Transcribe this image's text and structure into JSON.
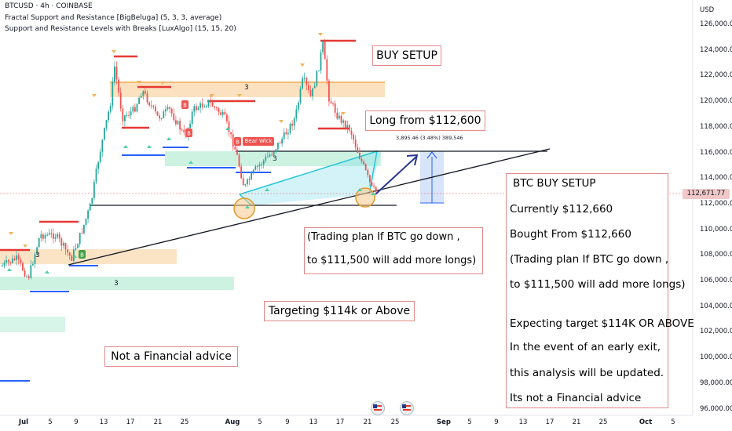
{
  "header": {
    "symbol_line": "BTCUSD · 4h · COINBASE",
    "indicator1": "Fractal Support and Resistance [BigBeluga] (5, 3, 3, average)",
    "indicator2": "Support and Resistance Levels with Breaks [LuxAlgo] (15, 15, 20)"
  },
  "price_axis": {
    "currency": "USD",
    "ticks": [
      "126,000.00",
      "124,000.00",
      "122,000.00",
      "120,000.00",
      "118,000.00",
      "116,000.00",
      "114,000.00",
      "112,000.00",
      "110,000.00",
      "108,000.00",
      "106,000.00",
      "104,000.00",
      "102,000.00",
      "100,000.00",
      "98,000.00",
      "96,000.00"
    ],
    "current_price": "112,671.77"
  },
  "time_axis": {
    "ticks": [
      "Jul",
      "5",
      "9",
      "13",
      "17",
      "21",
      "25",
      "Aug",
      "5",
      "9",
      "13",
      "17",
      "21",
      "25",
      "Sep",
      "5",
      "9",
      "13",
      "17",
      "21",
      "25",
      "Oct",
      "5"
    ]
  },
  "annotations": {
    "buy_setup": "BUY SETUP",
    "long_from": "Long from $112,600",
    "measure": "3,895.46 (3.48%) 389,546",
    "plan_line1": "(Trading plan If BTC go down ,",
    "plan_line2": "to $111,500 will add more longs)",
    "targeting": "Targeting $114k or Above",
    "disclaimer": "Not a Financial advice",
    "bear_wick": "Bear Wick",
    "zone_label": "3"
  },
  "setup_panel": {
    "title": "BTC BUY SETUP",
    "currently": "Currently $112,660",
    "bought": "Bought From $112,660",
    "plan1": "(Trading plan If BTC go down ,",
    "plan2": "to $111,500 will add more longs)",
    "target": "Expecting target $114K OR ABOVE",
    "exit1": "In the event of an early exit,",
    "exit2": "this analysis will be updated.",
    "note": "Its not a Financial advice"
  },
  "colors": {
    "up_candle": "#26a69a",
    "down_candle": "#ef5350",
    "resistance": "#e53935",
    "support": "#2962ff",
    "zone_orange": "#f7c98b",
    "zone_green": "#9be6c6",
    "projection": "#283593",
    "box_border": "#e08a8a"
  }
}
